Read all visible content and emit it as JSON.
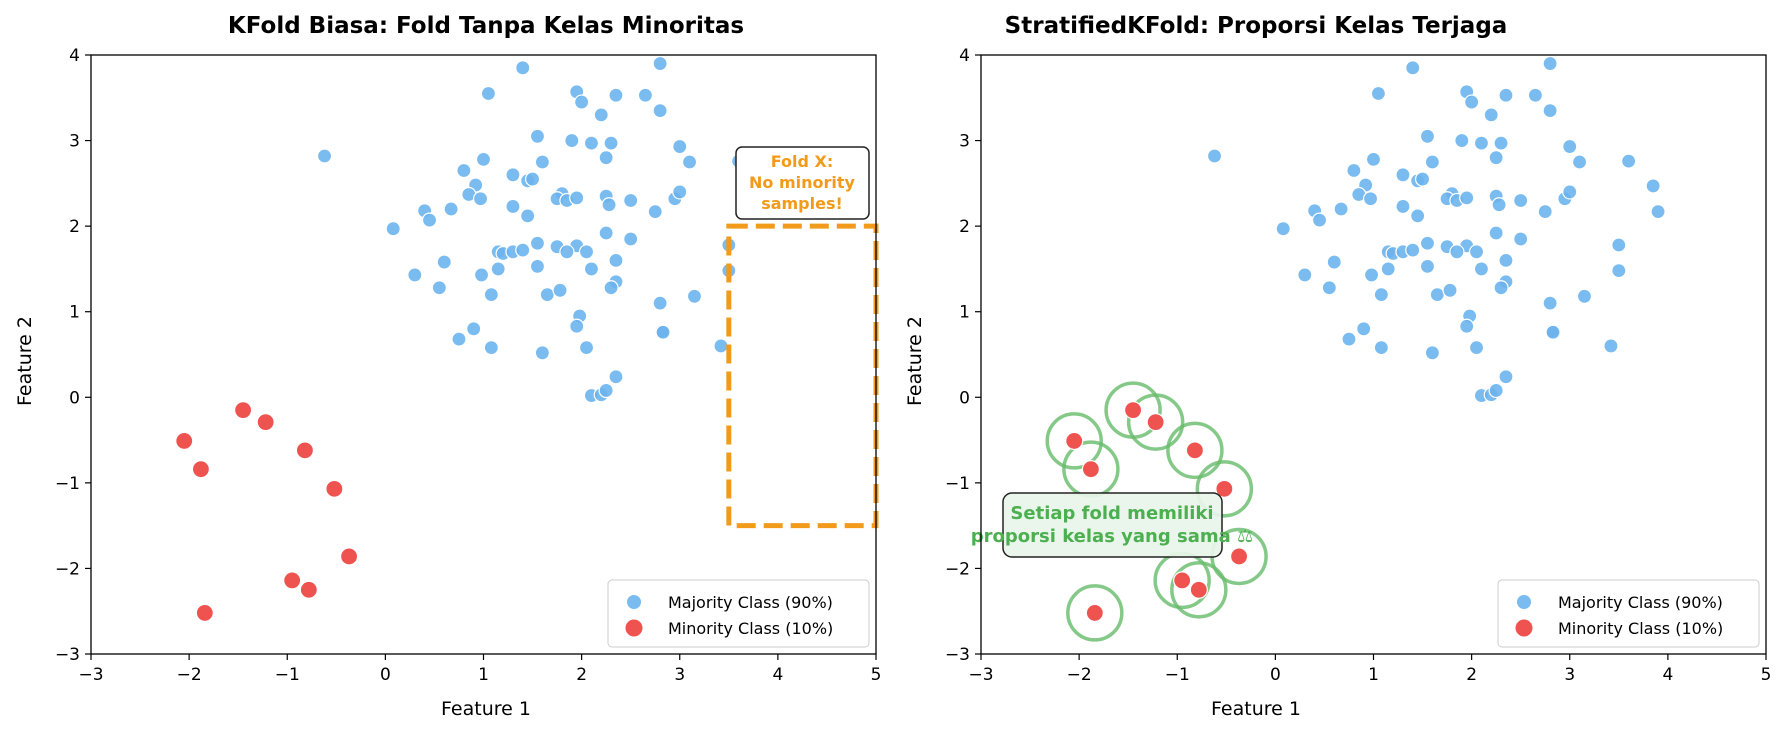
{
  "chart_data": [
    {
      "type": "scatter",
      "title": "KFold Biasa: Fold Tanpa Kelas Minoritas",
      "xlabel": "Feature 1",
      "ylabel": "Feature 2",
      "xlim": [
        -3,
        5
      ],
      "ylim": [
        -3,
        4
      ],
      "xticks": [
        "−3",
        "−2",
        "−1",
        "0",
        "1",
        "2",
        "3",
        "4",
        "5"
      ],
      "yticks": [
        "−3",
        "−2",
        "−1",
        "0",
        "1",
        "2",
        "3",
        "4"
      ],
      "grid": false,
      "legend_position": "lower-right",
      "series": [
        {
          "name": "Majority Class (90%)",
          "color": "#6cb4ee",
          "points": [
            [
              -0.62,
              2.82
            ],
            [
              1.05,
              3.55
            ],
            [
              1.4,
              3.85
            ],
            [
              2.8,
              3.9
            ],
            [
              1.95,
              3.57
            ],
            [
              2.0,
              3.45
            ],
            [
              2.2,
              3.3
            ],
            [
              2.35,
              3.53
            ],
            [
              2.65,
              3.53
            ],
            [
              2.8,
              3.35
            ],
            [
              3.0,
              2.93
            ],
            [
              3.1,
              2.75
            ],
            [
              1.55,
              3.05
            ],
            [
              1.9,
              3.0
            ],
            [
              2.1,
              2.97
            ],
            [
              2.3,
              2.97
            ],
            [
              2.25,
              2.8
            ],
            [
              1.0,
              2.78
            ],
            [
              1.6,
              2.75
            ],
            [
              3.6,
              2.76
            ],
            [
              0.8,
              2.65
            ],
            [
              1.3,
              2.6
            ],
            [
              1.45,
              2.53
            ],
            [
              1.5,
              2.55
            ],
            [
              0.92,
              2.48
            ],
            [
              0.85,
              2.37
            ],
            [
              0.97,
              2.32
            ],
            [
              0.67,
              2.2
            ],
            [
              0.4,
              2.18
            ],
            [
              0.45,
              2.07
            ],
            [
              1.3,
              2.23
            ],
            [
              1.45,
              2.12
            ],
            [
              1.8,
              2.38
            ],
            [
              1.75,
              2.32
            ],
            [
              1.85,
              2.3
            ],
            [
              1.95,
              2.33
            ],
            [
              2.25,
              2.35
            ],
            [
              2.28,
              2.25
            ],
            [
              2.5,
              2.3
            ],
            [
              2.75,
              2.17
            ],
            [
              2.95,
              2.32
            ],
            [
              3.0,
              2.4
            ],
            [
              0.08,
              1.97
            ],
            [
              2.25,
              1.92
            ],
            [
              2.5,
              1.85
            ],
            [
              1.55,
              1.8
            ],
            [
              1.75,
              1.76
            ],
            [
              1.95,
              1.77
            ],
            [
              2.05,
              1.7
            ],
            [
              1.85,
              1.7
            ],
            [
              1.15,
              1.7
            ],
            [
              1.2,
              1.68
            ],
            [
              1.3,
              1.7
            ],
            [
              1.4,
              1.72
            ],
            [
              0.3,
              1.43
            ],
            [
              0.55,
              1.28
            ],
            [
              0.6,
              1.58
            ],
            [
              0.98,
              1.43
            ],
            [
              1.15,
              1.5
            ],
            [
              1.55,
              1.53
            ],
            [
              2.1,
              1.5
            ],
            [
              2.35,
              1.6
            ],
            [
              2.35,
              1.35
            ],
            [
              2.3,
              1.28
            ],
            [
              1.65,
              1.2
            ],
            [
              1.78,
              1.25
            ],
            [
              1.08,
              1.2
            ],
            [
              2.8,
              1.1
            ],
            [
              3.15,
              1.18
            ],
            [
              3.42,
              0.6
            ],
            [
              0.75,
              0.68
            ],
            [
              0.9,
              0.8
            ],
            [
              1.08,
              0.58
            ],
            [
              1.6,
              0.52
            ],
            [
              1.98,
              0.95
            ],
            [
              1.95,
              0.83
            ],
            [
              2.05,
              0.58
            ],
            [
              2.82,
              0.77
            ],
            [
              2.83,
              0.76
            ],
            [
              2.35,
              0.24
            ],
            [
              2.1,
              0.02
            ],
            [
              2.2,
              0.03
            ],
            [
              2.25,
              0.08
            ],
            [
              3.5,
              1.78
            ],
            [
              3.5,
              1.48
            ],
            [
              3.85,
              2.47
            ],
            [
              3.9,
              2.17
            ]
          ]
        },
        {
          "name": "Minority Class (10%)",
          "color": "#ef5350",
          "points": [
            [
              -1.45,
              -0.15
            ],
            [
              -1.22,
              -0.29
            ],
            [
              -2.05,
              -0.51
            ],
            [
              -1.88,
              -0.84
            ],
            [
              -0.82,
              -0.62
            ],
            [
              -0.52,
              -1.07
            ],
            [
              -0.37,
              -1.86
            ],
            [
              -0.95,
              -2.14
            ],
            [
              -0.78,
              -2.25
            ],
            [
              -1.84,
              -2.52
            ]
          ]
        }
      ],
      "annotation": {
        "lines": [
          "Fold X:",
          "No minority",
          "samples!"
        ],
        "color": "#f29b1a",
        "box_x": [
          3.5,
          5.0
        ],
        "box_y": [
          -1.5,
          2.0
        ]
      }
    },
    {
      "type": "scatter",
      "title": "StratifiedKFold: Proporsi Kelas Terjaga",
      "xlabel": "Feature 1",
      "ylabel": "Feature 2",
      "xlim": [
        -3,
        5
      ],
      "ylim": [
        -3,
        4
      ],
      "xticks": [
        "−3",
        "−2",
        "−1",
        "0",
        "1",
        "2",
        "3",
        "4",
        "5"
      ],
      "yticks": [
        "−3",
        "−2",
        "−1",
        "0",
        "1",
        "2",
        "3",
        "4"
      ],
      "grid": false,
      "legend_position": "lower-right",
      "series_same_as_left": true,
      "minority_highlight_color": "#66bb6a",
      "annotation": {
        "lines": [
          "Setiap fold memiliki",
          "proporsi kelas yang sama ⚖"
        ],
        "color": "#4caf50"
      }
    }
  ]
}
